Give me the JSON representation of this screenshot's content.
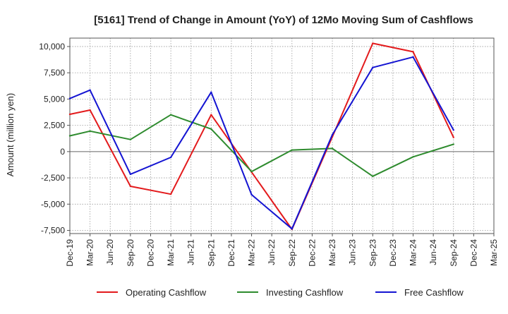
{
  "chart_data": {
    "type": "line",
    "title": "[5161]  Trend of Change in Amount (YoY) of 12Mo Moving Sum of Cashflows",
    "ylabel": "Amount (million yen)",
    "xlabel": "",
    "ylim": [
      -7800,
      10800
    ],
    "yticks": [
      10000,
      7500,
      5000,
      2500,
      0,
      -2500,
      -5000,
      -7500
    ],
    "ytick_labels": [
      "10,000",
      "7,500",
      "5,000",
      "2,500",
      "0",
      "-2,500",
      "-5,000",
      "-7,500"
    ],
    "categories": [
      "Dec-19",
      "Mar-20",
      "Jun-20",
      "Sep-20",
      "Dec-20",
      "Mar-21",
      "Jun-21",
      "Sep-21",
      "Dec-21",
      "Mar-22",
      "Jun-22",
      "Sep-22",
      "Dec-22",
      "Mar-23",
      "Jun-23",
      "Sep-23",
      "Dec-23",
      "Mar-24",
      "Jun-24",
      "Sep-24",
      "Dec-24",
      "Mar-25"
    ],
    "grid": true,
    "legend_position": "bottom",
    "series": [
      {
        "name": "Operating Cashflow",
        "color": "#e31a1c",
        "values": [
          3550,
          3950,
          null,
          -3300,
          null,
          -4050,
          null,
          3500,
          null,
          -1950,
          null,
          -7400,
          null,
          1400,
          null,
          10300,
          null,
          9500,
          null,
          1350,
          null,
          null
        ]
      },
      {
        "name": "Investing Cashflow",
        "color": "#2e8b2e",
        "values": [
          1500,
          1950,
          null,
          1150,
          null,
          3500,
          null,
          2150,
          null,
          -1900,
          null,
          150,
          null,
          300,
          null,
          -2350,
          null,
          -500,
          null,
          700,
          null,
          null
        ]
      },
      {
        "name": "Free Cashflow",
        "color": "#1414d2",
        "values": [
          5050,
          5850,
          null,
          -2150,
          null,
          -550,
          null,
          5650,
          null,
          -4100,
          null,
          -7350,
          null,
          1600,
          null,
          8000,
          null,
          9000,
          null,
          2050,
          null,
          null
        ]
      }
    ]
  }
}
